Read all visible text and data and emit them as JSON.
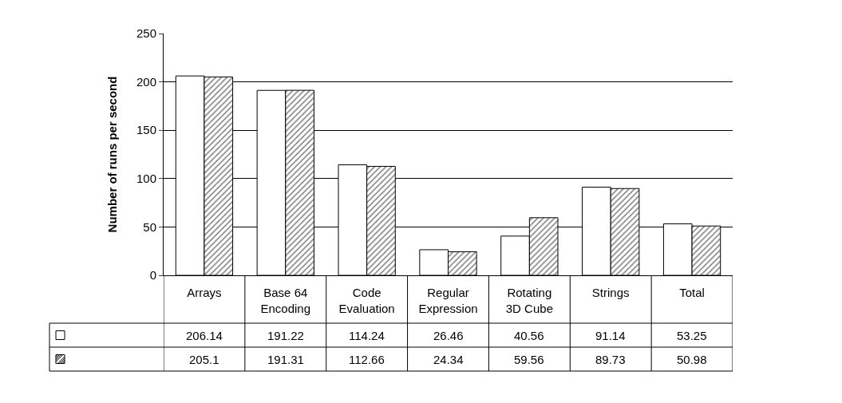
{
  "chart_data": {
    "type": "bar",
    "ylabel": "Number of runs per second",
    "categories": [
      "Arrays",
      "Base 64\nEncoding",
      "Code\nEvaluation",
      "Regular\nExpression",
      "Rotating\n3D Cube",
      "Strings",
      "Total"
    ],
    "series": [
      {
        "color": "#ffffff",
        "values": [
          206.14,
          191.22,
          114.24,
          26.46,
          40.56,
          91.14,
          53.25
        ]
      },
      {
        "color": "#000000",
        "values": [
          205.1,
          191.31,
          112.66,
          24.34,
          59.56,
          89.73,
          50.98
        ]
      }
    ],
    "ylim": [
      0,
      250
    ],
    "yticks": [
      0,
      50,
      100,
      150,
      200,
      250
    ],
    "grid": "y",
    "data_labels": true
  }
}
